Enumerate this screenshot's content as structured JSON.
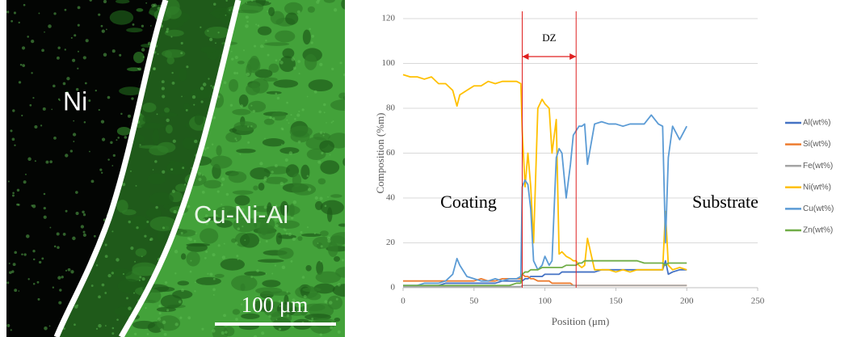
{
  "micrograph": {
    "labels": [
      "Ni",
      "Cu-Ni-Al"
    ],
    "scale_bar": "100 μm"
  },
  "chart_data": {
    "type": "line",
    "xlabel": "Position (μm)",
    "ylabel": "Composition (%m)",
    "xlim": [
      0,
      250
    ],
    "xticks": [
      0,
      50,
      100,
      150,
      200,
      250
    ],
    "ylim": [
      0,
      120
    ],
    "yticks": [
      0,
      20,
      40,
      60,
      80,
      100,
      120
    ],
    "grid": true,
    "legend": "right",
    "dz_bounds": [
      84,
      122
    ],
    "dz_color": "#e02020",
    "annotations": [
      "DZ",
      "Coating",
      "Substrate"
    ],
    "x": [
      0,
      5,
      10,
      15,
      20,
      25,
      30,
      35,
      38,
      40,
      45,
      50,
      55,
      60,
      65,
      70,
      75,
      80,
      83,
      84,
      86,
      88,
      90,
      92,
      95,
      98,
      100,
      103,
      105,
      108,
      110,
      112,
      115,
      118,
      120,
      122,
      124,
      126,
      128,
      130,
      135,
      140,
      145,
      150,
      155,
      160,
      165,
      170,
      175,
      180,
      183,
      185,
      187,
      190,
      195,
      200
    ],
    "series": [
      {
        "name": "Al(wt%)",
        "color": "#4472c4",
        "values": [
          1,
          1,
          1,
          1,
          1,
          1,
          2,
          2,
          2,
          2,
          2,
          2,
          2,
          2,
          2,
          3,
          3,
          3,
          3,
          3,
          4,
          4,
          5,
          5,
          5,
          5,
          6,
          6,
          6,
          6,
          6,
          7,
          7,
          7,
          7,
          7,
          7,
          7,
          7,
          7,
          7,
          8,
          8,
          8,
          8,
          8,
          8,
          8,
          8,
          8,
          8,
          12,
          6,
          7,
          8,
          8
        ]
      },
      {
        "name": "Si(wt%)",
        "color": "#ed7d31",
        "values": [
          3,
          3,
          3,
          3,
          3,
          3,
          3,
          3,
          3,
          3,
          3,
          3,
          4,
          3,
          3,
          4,
          4,
          4,
          4,
          6,
          5,
          5,
          4,
          4,
          3,
          3,
          3,
          3,
          2,
          2,
          2,
          2,
          2,
          2,
          1,
          1,
          1,
          1,
          1,
          1,
          1,
          1,
          1,
          1,
          1,
          1,
          1,
          1,
          1,
          1,
          1,
          1,
          1,
          1,
          1,
          1
        ]
      },
      {
        "name": "Fe(wt%)",
        "color": "#a5a5a5",
        "values": [
          0.5,
          0.5,
          0.5,
          0.5,
          0.5,
          0.5,
          0.5,
          0.5,
          0.5,
          0.5,
          0.5,
          0.5,
          0.5,
          0.5,
          0.5,
          0.5,
          0.5,
          0.5,
          0.5,
          1,
          1,
          1,
          1,
          1,
          1,
          1,
          1,
          1,
          1,
          1,
          1,
          1,
          1,
          1,
          1,
          1,
          1,
          1,
          1,
          1,
          1,
          1,
          1,
          1,
          1,
          1,
          1,
          1,
          1,
          1,
          1,
          1,
          1,
          1,
          1,
          1
        ]
      },
      {
        "name": "Ni(wt%)",
        "color": "#ffc000",
        "values": [
          95,
          94,
          94,
          93,
          94,
          91,
          91,
          88,
          81,
          86,
          88,
          90,
          90,
          92,
          91,
          92,
          92,
          92,
          91,
          70,
          45,
          60,
          45,
          20,
          80,
          84,
          82,
          80,
          60,
          75,
          15,
          16,
          14,
          13,
          12,
          12,
          10,
          9,
          10,
          22,
          8,
          8,
          8,
          7,
          8,
          7,
          8,
          8,
          8,
          8,
          8,
          34,
          10,
          8,
          9,
          8
        ]
      },
      {
        "name": "Cu(wt%)",
        "color": "#5b9bd5",
        "values": [
          1,
          1,
          1,
          2,
          2,
          2,
          3,
          6,
          13,
          10,
          5,
          4,
          3,
          3,
          4,
          3,
          4,
          4,
          5,
          45,
          48,
          46,
          35,
          12,
          8,
          10,
          14,
          10,
          12,
          58,
          62,
          60,
          40,
          55,
          68,
          70,
          72,
          72,
          73,
          55,
          73,
          74,
          73,
          73,
          72,
          73,
          73,
          73,
          77,
          73,
          72,
          20,
          58,
          72,
          66,
          72
        ]
      },
      {
        "name": "Zn(wt%)",
        "color": "#70ad47",
        "values": [
          1,
          1,
          1,
          1,
          1,
          1,
          1,
          1,
          1,
          1,
          1,
          1,
          1,
          1,
          1,
          1,
          1,
          2,
          2,
          6,
          7,
          7,
          8,
          8,
          8,
          9,
          9,
          9,
          9,
          9,
          9,
          9,
          10,
          10,
          10,
          10,
          11,
          11,
          12,
          12,
          12,
          12,
          12,
          12,
          12,
          12,
          12,
          11,
          11,
          11,
          11,
          10,
          11,
          11,
          11,
          11
        ]
      }
    ]
  }
}
